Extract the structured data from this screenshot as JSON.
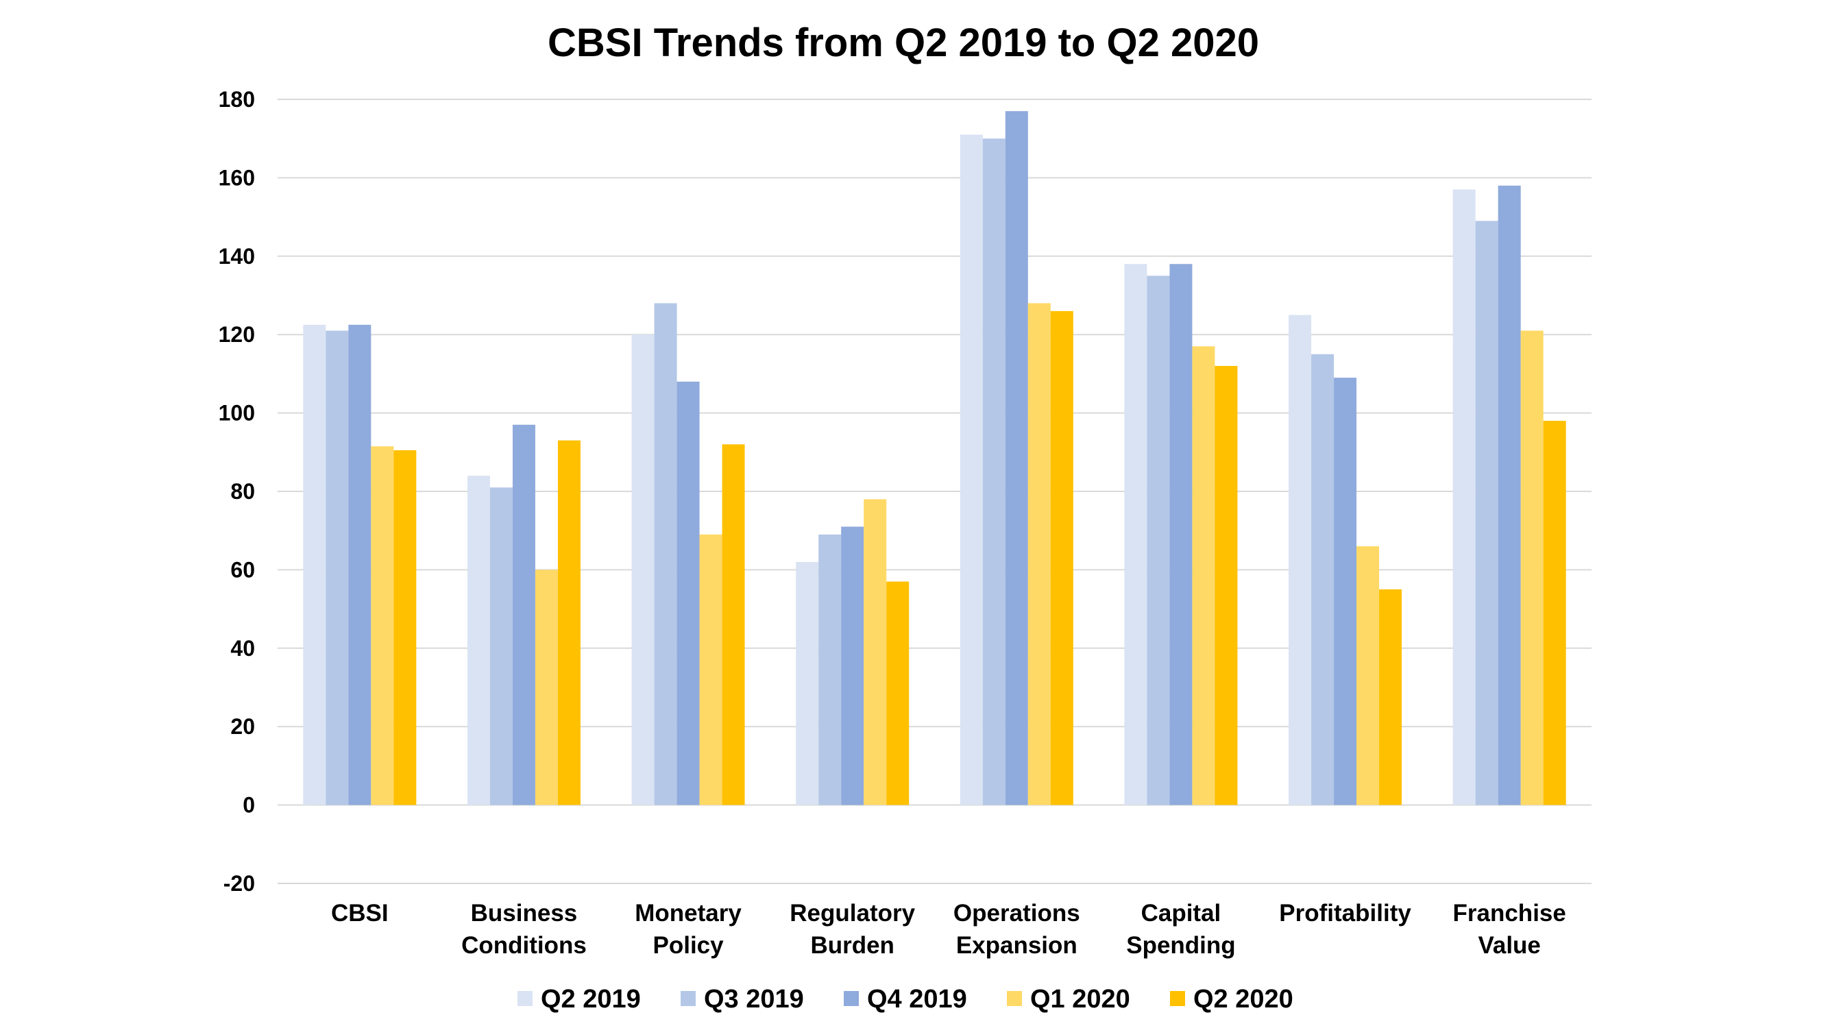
{
  "chart_data": {
    "type": "bar",
    "title": "CBSI Trends from Q2 2019 to Q2 2020",
    "xlabel": "",
    "ylabel": "",
    "ylim": [
      -20,
      180
    ],
    "yticks": [
      -20,
      0,
      20,
      40,
      60,
      80,
      100,
      120,
      140,
      160,
      180
    ],
    "grid": true,
    "legend_position": "bottom",
    "categories": [
      [
        "CBSI"
      ],
      [
        "Business",
        "Conditions"
      ],
      [
        "Monetary",
        "Policy"
      ],
      [
        "Regulatory",
        "Burden"
      ],
      [
        "Operations",
        "Expansion"
      ],
      [
        "Capital",
        "Spending"
      ],
      [
        "Profitability"
      ],
      [
        "Franchise",
        "Value"
      ]
    ],
    "series": [
      {
        "name": "Q2 2019",
        "color": "#dae3f3",
        "values": [
          122.5,
          84,
          120,
          62,
          171,
          138,
          125,
          157
        ]
      },
      {
        "name": "Q3 2019",
        "color": "#b4c7e7",
        "values": [
          121,
          81,
          128,
          69,
          170,
          135,
          115,
          149
        ]
      },
      {
        "name": "Q4 2019",
        "color": "#8faadc",
        "values": [
          122.5,
          97,
          108,
          71,
          177,
          138,
          109,
          158
        ]
      },
      {
        "name": "Q1 2020",
        "color": "#ffd966",
        "values": [
          91.5,
          60,
          69,
          78,
          128,
          117,
          66,
          121
        ]
      },
      {
        "name": "Q2 2020",
        "color": "#ffc000",
        "values": [
          90.5,
          93,
          92,
          57,
          126,
          112,
          55,
          98
        ]
      }
    ]
  }
}
